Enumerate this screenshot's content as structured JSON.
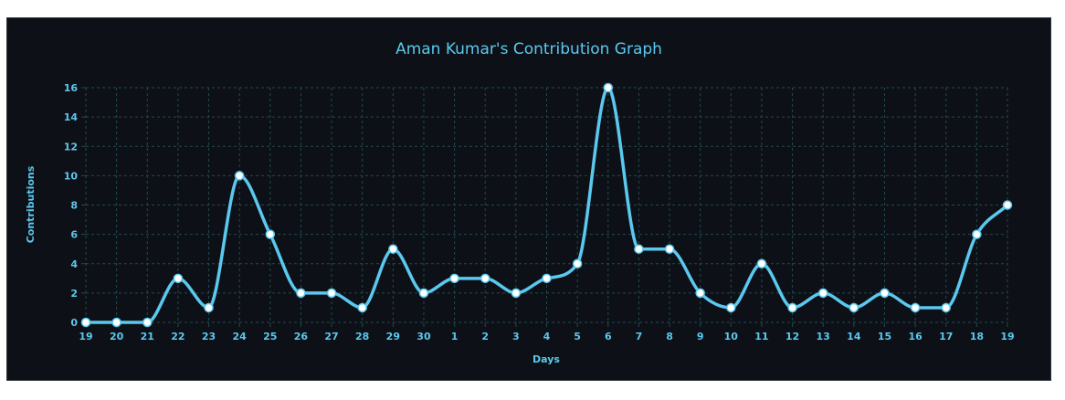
{
  "chart_data": {
    "type": "line",
    "title": "Aman Kumar's Contribution Graph",
    "xlabel": "Days",
    "ylabel": "Contributions",
    "categories": [
      "19",
      "20",
      "21",
      "22",
      "23",
      "24",
      "25",
      "26",
      "27",
      "28",
      "29",
      "30",
      "1",
      "2",
      "3",
      "4",
      "5",
      "6",
      "7",
      "8",
      "9",
      "10",
      "11",
      "12",
      "13",
      "14",
      "15",
      "16",
      "17",
      "18",
      "19"
    ],
    "values": [
      0,
      0,
      0,
      3,
      1,
      10,
      6,
      2,
      2,
      1,
      5,
      2,
      3,
      3,
      2,
      3,
      4,
      16,
      5,
      5,
      2,
      1,
      4,
      1,
      2,
      1,
      2,
      1,
      1,
      6,
      8
    ],
    "yticks": [
      0,
      2,
      4,
      6,
      8,
      10,
      12,
      14,
      16
    ],
    "ylim": [
      0,
      16
    ],
    "grid": true,
    "smooth": true,
    "colors": {
      "line": "#5bc8ef",
      "point_fill": "#ffffff",
      "grid": "#1f4a4f",
      "background": "#0d1117",
      "text": "#5bc8ef"
    }
  }
}
